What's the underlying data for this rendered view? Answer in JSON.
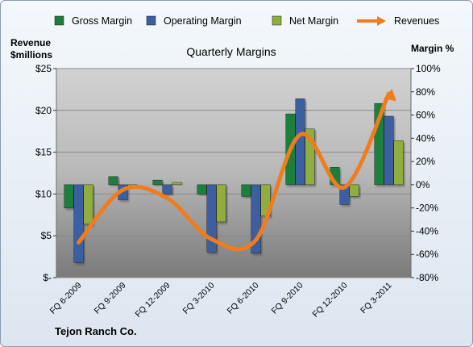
{
  "chart_data": {
    "type": "bar",
    "title": "Quarterly Margins",
    "company": "Tejon Ranch  Co.",
    "left_axis": {
      "label_line1": "Revenue",
      "label_line2": "$millions",
      "min": 0,
      "max": 25,
      "ticks": [
        {
          "v": 0,
          "label": "$-"
        },
        {
          "v": 5,
          "label": "$5"
        },
        {
          "v": 10,
          "label": "$10"
        },
        {
          "v": 15,
          "label": "$15"
        },
        {
          "v": 20,
          "label": "$20"
        },
        {
          "v": 25,
          "label": "$25"
        }
      ]
    },
    "right_axis": {
      "label": "Margin %",
      "min": -80,
      "max": 100,
      "ticks": [
        {
          "v": -80,
          "label": "-80%"
        },
        {
          "v": -60,
          "label": "-60%"
        },
        {
          "v": -40,
          "label": "-40%"
        },
        {
          "v": -20,
          "label": "-20%"
        },
        {
          "v": 0,
          "label": "0%"
        },
        {
          "v": 20,
          "label": "20%"
        },
        {
          "v": 40,
          "label": "40%"
        },
        {
          "v": 60,
          "label": "60%"
        },
        {
          "v": 80,
          "label": "80%"
        },
        {
          "v": 100,
          "label": "100%"
        }
      ]
    },
    "categories": [
      "FQ 6-2009",
      "FQ 9-2009",
      "FQ 12-2009",
      "FQ 3-2010",
      "FQ 6-2010",
      "FQ 9-2010",
      "FQ 12-2010",
      "FQ 3-2011"
    ],
    "series": [
      {
        "name": "Gross Margin",
        "kind": "bar",
        "axis": "right",
        "color": "#1f7f3a",
        "values": [
          -20,
          7,
          4,
          -8,
          -10,
          61,
          15,
          70
        ]
      },
      {
        "name": "Operating Margin",
        "kind": "bar",
        "axis": "right",
        "color": "#3b5fa0",
        "values": [
          -67,
          -13,
          -8,
          -58,
          -59,
          74,
          -17,
          59
        ]
      },
      {
        "name": "Net Margin",
        "kind": "bar",
        "axis": "right",
        "color": "#8fae3c",
        "values": [
          -34,
          -2,
          2,
          -32,
          -27,
          48,
          -10,
          38
        ]
      },
      {
        "name": "Revenues",
        "kind": "line",
        "axis": "left",
        "color": "#f07c1e",
        "values": [
          4.2,
          10.5,
          9.5,
          4.6,
          4.5,
          17.1,
          10.8,
          22.0
        ]
      }
    ],
    "legend_position": "top",
    "grid": true
  }
}
